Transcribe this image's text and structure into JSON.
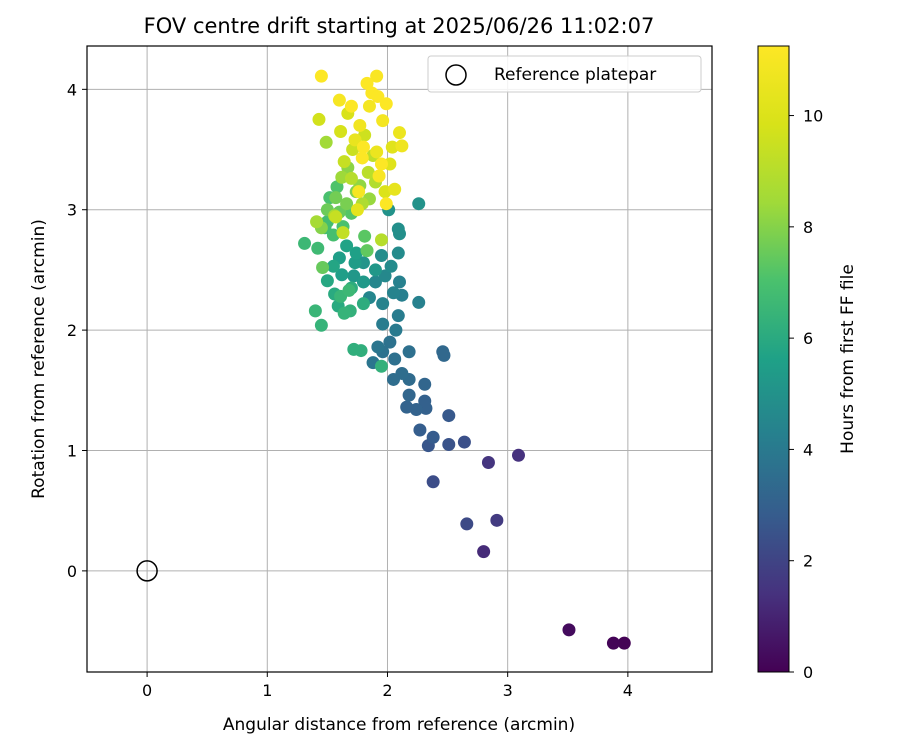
{
  "chart_data": {
    "type": "scatter",
    "title": "FOV centre drift starting at 2025/06/26 11:02:07",
    "xlabel": "Angular distance from reference (arcmin)",
    "ylabel": "Rotation from reference (arcmin)",
    "xlim": [
      -0.5,
      4.7
    ],
    "ylim": [
      -0.84,
      4.36
    ],
    "xticks": [
      0,
      1,
      2,
      3,
      4
    ],
    "yticks": [
      0,
      1,
      2,
      3,
      4
    ],
    "grid": true,
    "legend": {
      "position": "top-right",
      "label": "Reference platepar"
    },
    "reference_point": {
      "x": 0,
      "y": 0
    },
    "colorbar": {
      "label": "Hours from first FF file",
      "colormap": "viridis",
      "min": 0,
      "max": 11.25,
      "ticks": [
        0,
        2,
        4,
        6,
        8,
        10
      ]
    },
    "series": [
      {
        "columns": [
          "x",
          "y",
          "hours"
        ],
        "points": [
          [
            3.97,
            -0.6,
            0.05
          ],
          [
            3.88,
            -0.6,
            0.1
          ],
          [
            3.51,
            -0.49,
            0.3
          ],
          [
            2.8,
            0.16,
            1.2
          ],
          [
            3.09,
            0.96,
            1.4
          ],
          [
            2.84,
            0.9,
            1.5
          ],
          [
            2.91,
            0.42,
            1.7
          ],
          [
            2.66,
            0.39,
            2.2
          ],
          [
            2.38,
            0.74,
            2.3
          ],
          [
            2.64,
            1.07,
            2.4
          ],
          [
            2.51,
            1.05,
            2.5
          ],
          [
            2.51,
            1.29,
            2.7
          ],
          [
            2.34,
            1.04,
            2.6
          ],
          [
            2.38,
            1.11,
            2.8
          ],
          [
            2.27,
            1.17,
            2.9
          ],
          [
            2.32,
            1.35,
            3.0
          ],
          [
            2.31,
            1.41,
            3.0
          ],
          [
            2.24,
            1.34,
            3.1
          ],
          [
            2.16,
            1.36,
            3.1
          ],
          [
            2.18,
            1.46,
            3.2
          ],
          [
            2.31,
            1.55,
            3.2
          ],
          [
            2.47,
            1.79,
            3.3
          ],
          [
            2.46,
            1.82,
            3.3
          ],
          [
            2.18,
            1.59,
            3.4
          ],
          [
            2.12,
            1.64,
            3.5
          ],
          [
            2.05,
            1.59,
            3.5
          ],
          [
            2.18,
            1.82,
            3.6
          ],
          [
            2.06,
            1.76,
            3.6
          ],
          [
            1.96,
            1.82,
            3.7
          ],
          [
            2.02,
            1.9,
            3.7
          ],
          [
            1.88,
            1.73,
            3.8
          ],
          [
            1.92,
            1.86,
            3.8
          ],
          [
            2.07,
            2.0,
            4.0
          ],
          [
            2.09,
            2.12,
            4.1
          ],
          [
            1.96,
            2.05,
            4.1
          ],
          [
            2.12,
            2.29,
            4.2
          ],
          [
            2.1,
            2.4,
            4.3
          ],
          [
            2.26,
            2.23,
            4.3
          ],
          [
            2.05,
            2.31,
            4.4
          ],
          [
            1.96,
            2.22,
            4.4
          ],
          [
            1.85,
            2.27,
            4.5
          ],
          [
            1.9,
            2.4,
            4.5
          ],
          [
            1.98,
            2.45,
            4.6
          ],
          [
            2.09,
            2.64,
            4.7
          ],
          [
            2.03,
            2.53,
            4.7
          ],
          [
            1.95,
            2.62,
            4.8
          ],
          [
            2.1,
            2.8,
            4.9
          ],
          [
            2.09,
            2.84,
            4.9
          ],
          [
            2.26,
            3.05,
            5.0
          ],
          [
            2.01,
            3.0,
            5.0
          ],
          [
            1.8,
            2.56,
            5.1
          ],
          [
            1.72,
            2.45,
            5.2
          ],
          [
            1.9,
            2.5,
            5.2
          ],
          [
            1.8,
            2.4,
            5.3
          ],
          [
            1.73,
            2.56,
            5.4
          ],
          [
            1.62,
            2.46,
            5.5
          ],
          [
            1.6,
            2.6,
            5.5
          ],
          [
            1.74,
            2.64,
            5.6
          ],
          [
            1.66,
            2.7,
            5.7
          ],
          [
            1.55,
            2.53,
            5.8
          ],
          [
            1.5,
            2.41,
            5.9
          ],
          [
            1.56,
            2.3,
            6.0
          ],
          [
            1.59,
            2.2,
            6.0
          ],
          [
            1.7,
            2.35,
            6.1
          ],
          [
            1.8,
            2.22,
            6.1
          ],
          [
            1.72,
            1.84,
            6.2
          ],
          [
            1.78,
            1.83,
            6.2
          ],
          [
            1.95,
            1.7,
            6.3
          ],
          [
            1.69,
            2.16,
            6.3
          ],
          [
            1.64,
            2.14,
            6.4
          ],
          [
            1.45,
            2.04,
            6.4
          ],
          [
            1.4,
            2.16,
            6.5
          ],
          [
            1.61,
            2.28,
            6.5
          ],
          [
            1.68,
            2.33,
            6.6
          ],
          [
            1.31,
            2.72,
            6.6
          ],
          [
            1.42,
            2.68,
            6.7
          ],
          [
            1.5,
            2.9,
            6.8
          ],
          [
            1.48,
            2.85,
            6.8
          ],
          [
            1.55,
            2.79,
            6.9
          ],
          [
            1.63,
            2.86,
            7.0
          ],
          [
            1.52,
            3.1,
            7.0
          ],
          [
            1.58,
            3.19,
            7.1
          ],
          [
            1.7,
            2.97,
            7.2
          ],
          [
            1.81,
            2.78,
            7.3
          ],
          [
            1.83,
            2.66,
            7.4
          ],
          [
            1.6,
            2.98,
            7.5
          ],
          [
            1.46,
            2.52,
            7.5
          ],
          [
            1.5,
            3.0,
            7.6
          ],
          [
            1.57,
            3.1,
            7.7
          ],
          [
            1.66,
            3.05,
            7.8
          ],
          [
            1.74,
            3.15,
            7.9
          ],
          [
            1.45,
            2.85,
            8.0
          ],
          [
            1.67,
            3.35,
            8.1
          ],
          [
            1.77,
            3.2,
            8.2
          ],
          [
            1.85,
            3.09,
            8.3
          ],
          [
            1.62,
            3.27,
            8.4
          ],
          [
            1.49,
            3.56,
            8.5
          ],
          [
            1.41,
            2.9,
            8.6
          ],
          [
            1.56,
            2.95,
            8.7
          ],
          [
            1.79,
            3.05,
            8.8
          ],
          [
            1.9,
            3.23,
            8.9
          ],
          [
            1.95,
            2.75,
            9.0
          ],
          [
            1.7,
            3.26,
            9.0
          ],
          [
            1.84,
            3.31,
            9.1
          ],
          [
            1.88,
            3.45,
            9.2
          ],
          [
            1.63,
            2.81,
            9.3
          ],
          [
            1.57,
            2.94,
            9.4
          ],
          [
            1.64,
            3.4,
            9.4
          ],
          [
            1.71,
            3.5,
            9.5
          ],
          [
            1.81,
            3.62,
            9.6
          ],
          [
            1.43,
            3.75,
            9.7
          ],
          [
            1.61,
            3.65,
            9.8
          ],
          [
            1.67,
            3.8,
            9.9
          ],
          [
            1.98,
            3.15,
            10.0
          ],
          [
            2.02,
            3.38,
            10.1
          ],
          [
            2.04,
            3.52,
            10.2
          ],
          [
            1.75,
            3.0,
            10.3
          ],
          [
            2.06,
            3.17,
            10.4
          ],
          [
            1.73,
            3.58,
            10.5
          ],
          [
            1.91,
            3.48,
            10.6
          ],
          [
            2.1,
            3.64,
            10.6
          ],
          [
            2.12,
            3.53,
            10.7
          ],
          [
            1.77,
            3.7,
            10.8
          ],
          [
            1.85,
            3.86,
            10.9
          ],
          [
            1.96,
            3.74,
            10.9
          ],
          [
            1.6,
            3.91,
            11.0
          ],
          [
            1.76,
            3.15,
            11.0
          ],
          [
            1.93,
            3.28,
            11.1
          ],
          [
            1.91,
            4.11,
            11.1
          ],
          [
            1.45,
            4.11,
            11.2
          ],
          [
            1.83,
            4.05,
            11.2
          ],
          [
            1.87,
            3.97,
            11.2
          ],
          [
            1.99,
            3.88,
            11.2
          ],
          [
            1.92,
            3.94,
            11.2
          ],
          [
            1.7,
            3.86,
            11.2
          ],
          [
            1.8,
            3.52,
            11.2
          ],
          [
            1.99,
            3.05,
            11.2
          ],
          [
            1.79,
            3.43,
            11.2
          ],
          [
            1.95,
            3.38,
            11.2
          ]
        ]
      }
    ]
  }
}
